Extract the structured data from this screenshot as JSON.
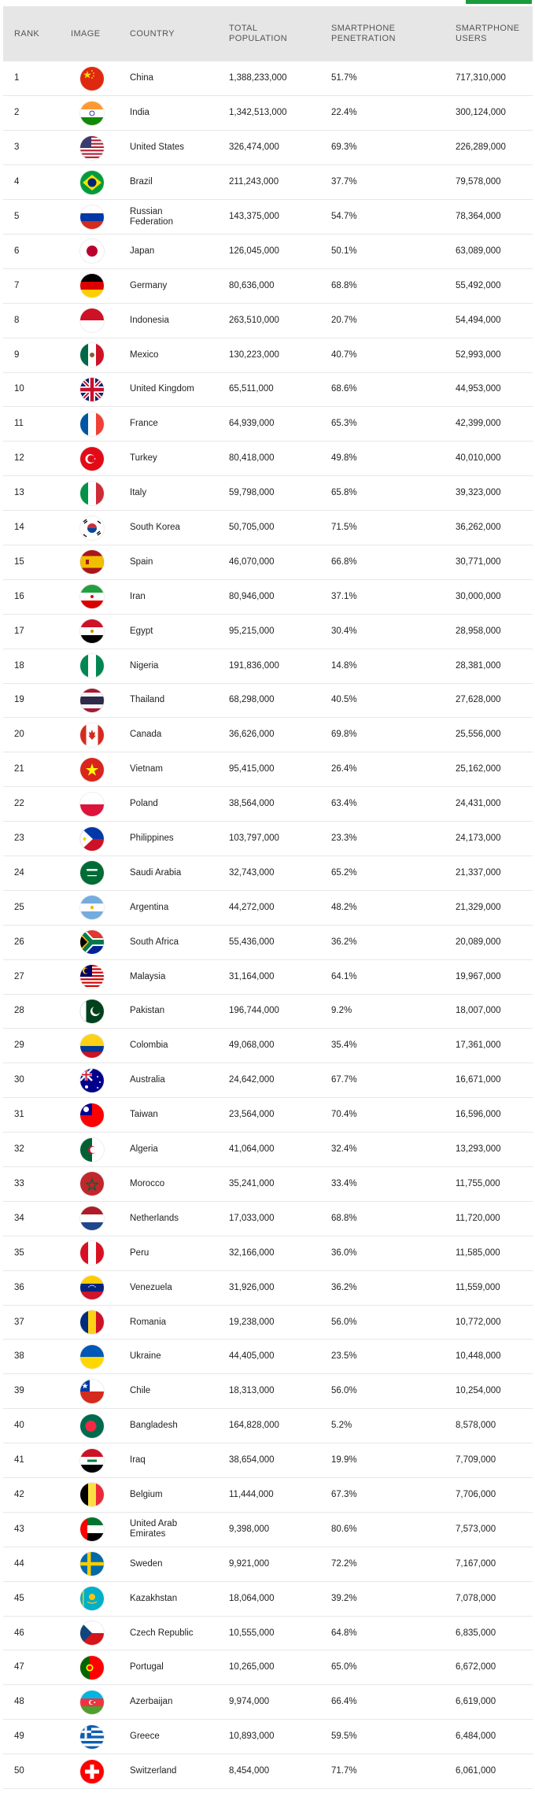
{
  "headers": {
    "rank": "RANK",
    "image": "IMAGE",
    "country": "COUNTRY",
    "population": "TOTAL POPULATION",
    "penetration": "SMARTPHONE PENETRATION",
    "users": "SMARTPHONE USERS"
  },
  "accent_color": "#1a9c3c",
  "rows": [
    {
      "rank": "1",
      "flag": "china-flag-icon",
      "country": "China",
      "population": "1,388,233,000",
      "penetration": "51.7%",
      "users": "717,310,000"
    },
    {
      "rank": "2",
      "flag": "india-flag-icon",
      "country": "India",
      "population": "1,342,513,000",
      "penetration": "22.4%",
      "users": "300,124,000"
    },
    {
      "rank": "3",
      "flag": "united-states-flag-icon",
      "country": "United States",
      "population": "326,474,000",
      "penetration": "69.3%",
      "users": "226,289,000"
    },
    {
      "rank": "4",
      "flag": "brazil-flag-icon",
      "country": "Brazil",
      "population": "211,243,000",
      "penetration": "37.7%",
      "users": "79,578,000"
    },
    {
      "rank": "5",
      "flag": "russian-federation-flag-icon",
      "country": "Russian Federation",
      "population": "143,375,000",
      "penetration": "54.7%",
      "users": "78,364,000"
    },
    {
      "rank": "6",
      "flag": "japan-flag-icon",
      "country": "Japan",
      "population": "126,045,000",
      "penetration": "50.1%",
      "users": "63,089,000"
    },
    {
      "rank": "7",
      "flag": "germany-flag-icon",
      "country": "Germany",
      "population": "80,636,000",
      "penetration": "68.8%",
      "users": "55,492,000"
    },
    {
      "rank": "8",
      "flag": "indonesia-flag-icon",
      "country": "Indonesia",
      "population": "263,510,000",
      "penetration": "20.7%",
      "users": "54,494,000"
    },
    {
      "rank": "9",
      "flag": "mexico-flag-icon",
      "country": "Mexico",
      "population": "130,223,000",
      "penetration": "40.7%",
      "users": "52,993,000"
    },
    {
      "rank": "10",
      "flag": "united-kingdom-flag-icon",
      "country": "United Kingdom",
      "population": "65,511,000",
      "penetration": "68.6%",
      "users": "44,953,000"
    },
    {
      "rank": "11",
      "flag": "france-flag-icon",
      "country": "France",
      "population": "64,939,000",
      "penetration": "65.3%",
      "users": "42,399,000"
    },
    {
      "rank": "12",
      "flag": "turkey-flag-icon",
      "country": "Turkey",
      "population": "80,418,000",
      "penetration": "49.8%",
      "users": "40,010,000"
    },
    {
      "rank": "13",
      "flag": "italy-flag-icon",
      "country": "Italy",
      "population": "59,798,000",
      "penetration": "65.8%",
      "users": "39,323,000"
    },
    {
      "rank": "14",
      "flag": "south-korea-flag-icon",
      "country": "South Korea",
      "population": "50,705,000",
      "penetration": "71.5%",
      "users": "36,262,000"
    },
    {
      "rank": "15",
      "flag": "spain-flag-icon",
      "country": "Spain",
      "population": "46,070,000",
      "penetration": "66.8%",
      "users": "30,771,000"
    },
    {
      "rank": "16",
      "flag": "iran-flag-icon",
      "country": "Iran",
      "population": "80,946,000",
      "penetration": "37.1%",
      "users": "30,000,000"
    },
    {
      "rank": "17",
      "flag": "egypt-flag-icon",
      "country": "Egypt",
      "population": "95,215,000",
      "penetration": "30.4%",
      "users": "28,958,000"
    },
    {
      "rank": "18",
      "flag": "nigeria-flag-icon",
      "country": "Nigeria",
      "population": "191,836,000",
      "penetration": "14.8%",
      "users": "28,381,000"
    },
    {
      "rank": "19",
      "flag": "thailand-flag-icon",
      "country": "Thailand",
      "population": "68,298,000",
      "penetration": "40.5%",
      "users": "27,628,000"
    },
    {
      "rank": "20",
      "flag": "canada-flag-icon",
      "country": "Canada",
      "population": "36,626,000",
      "penetration": "69.8%",
      "users": "25,556,000"
    },
    {
      "rank": "21",
      "flag": "vietnam-flag-icon",
      "country": "Vietnam",
      "population": "95,415,000",
      "penetration": "26.4%",
      "users": "25,162,000"
    },
    {
      "rank": "22",
      "flag": "poland-flag-icon",
      "country": "Poland",
      "population": "38,564,000",
      "penetration": "63.4%",
      "users": "24,431,000"
    },
    {
      "rank": "23",
      "flag": "philippines-flag-icon",
      "country": "Philippines",
      "population": "103,797,000",
      "penetration": "23.3%",
      "users": "24,173,000"
    },
    {
      "rank": "24",
      "flag": "saudi-arabia-flag-icon",
      "country": "Saudi Arabia",
      "population": "32,743,000",
      "penetration": "65.2%",
      "users": "21,337,000"
    },
    {
      "rank": "25",
      "flag": "argentina-flag-icon",
      "country": "Argentina",
      "population": "44,272,000",
      "penetration": "48.2%",
      "users": "21,329,000"
    },
    {
      "rank": "26",
      "flag": "south-africa-flag-icon",
      "country": "South Africa",
      "population": "55,436,000",
      "penetration": "36.2%",
      "users": "20,089,000"
    },
    {
      "rank": "27",
      "flag": "malaysia-flag-icon",
      "country": "Malaysia",
      "population": "31,164,000",
      "penetration": "64.1%",
      "users": "19,967,000"
    },
    {
      "rank": "28",
      "flag": "pakistan-flag-icon",
      "country": "Pakistan",
      "population": "196,744,000",
      "penetration": "9.2%",
      "users": "18,007,000"
    },
    {
      "rank": "29",
      "flag": "colombia-flag-icon",
      "country": "Colombia",
      "population": "49,068,000",
      "penetration": "35.4%",
      "users": "17,361,000"
    },
    {
      "rank": "30",
      "flag": "australia-flag-icon",
      "country": "Australia",
      "population": "24,642,000",
      "penetration": "67.7%",
      "users": "16,671,000"
    },
    {
      "rank": "31",
      "flag": "taiwan-flag-icon",
      "country": "Taiwan",
      "population": "23,564,000",
      "penetration": "70.4%",
      "users": "16,596,000"
    },
    {
      "rank": "32",
      "flag": "algeria-flag-icon",
      "country": "Algeria",
      "population": "41,064,000",
      "penetration": "32.4%",
      "users": "13,293,000"
    },
    {
      "rank": "33",
      "flag": "morocco-flag-icon",
      "country": "Morocco",
      "population": "35,241,000",
      "penetration": "33.4%",
      "users": "11,755,000"
    },
    {
      "rank": "34",
      "flag": "netherlands-flag-icon",
      "country": "Netherlands",
      "population": "17,033,000",
      "penetration": "68.8%",
      "users": "11,720,000"
    },
    {
      "rank": "35",
      "flag": "peru-flag-icon",
      "country": "Peru",
      "population": "32,166,000",
      "penetration": "36.0%",
      "users": "11,585,000"
    },
    {
      "rank": "36",
      "flag": "venezuela-flag-icon",
      "country": "Venezuela",
      "population": "31,926,000",
      "penetration": "36.2%",
      "users": "11,559,000"
    },
    {
      "rank": "37",
      "flag": "romania-flag-icon",
      "country": "Romania",
      "population": "19,238,000",
      "penetration": "56.0%",
      "users": "10,772,000"
    },
    {
      "rank": "38",
      "flag": "ukraine-flag-icon",
      "country": "Ukraine",
      "population": "44,405,000",
      "penetration": "23.5%",
      "users": "10,448,000"
    },
    {
      "rank": "39",
      "flag": "chile-flag-icon",
      "country": "Chile",
      "population": "18,313,000",
      "penetration": "56.0%",
      "users": "10,254,000"
    },
    {
      "rank": "40",
      "flag": "bangladesh-flag-icon",
      "country": "Bangladesh",
      "population": "164,828,000",
      "penetration": "5.2%",
      "users": "8,578,000"
    },
    {
      "rank": "41",
      "flag": "iraq-flag-icon",
      "country": "Iraq",
      "population": "38,654,000",
      "penetration": "19.9%",
      "users": "7,709,000"
    },
    {
      "rank": "42",
      "flag": "belgium-flag-icon",
      "country": "Belgium",
      "population": "11,444,000",
      "penetration": "67.3%",
      "users": "7,706,000"
    },
    {
      "rank": "43",
      "flag": "united-arab-emirates-flag-icon",
      "country": "United Arab Emirates",
      "population": "9,398,000",
      "penetration": "80.6%",
      "users": "7,573,000"
    },
    {
      "rank": "44",
      "flag": "sweden-flag-icon",
      "country": "Sweden",
      "population": "9,921,000",
      "penetration": "72.2%",
      "users": "7,167,000"
    },
    {
      "rank": "45",
      "flag": "kazakhstan-flag-icon",
      "country": "Kazakhstan",
      "population": "18,064,000",
      "penetration": "39.2%",
      "users": "7,078,000"
    },
    {
      "rank": "46",
      "flag": "czech-republic-flag-icon",
      "country": "Czech Republic",
      "population": "10,555,000",
      "penetration": "64.8%",
      "users": "6,835,000"
    },
    {
      "rank": "47",
      "flag": "portugal-flag-icon",
      "country": "Portugal",
      "population": "10,265,000",
      "penetration": "65.0%",
      "users": "6,672,000"
    },
    {
      "rank": "48",
      "flag": "azerbaijan-flag-icon",
      "country": "Azerbaijan",
      "population": "9,974,000",
      "penetration": "66.4%",
      "users": "6,619,000"
    },
    {
      "rank": "49",
      "flag": "greece-flag-icon",
      "country": "Greece",
      "population": "10,893,000",
      "penetration": "59.5%",
      "users": "6,484,000"
    },
    {
      "rank": "50",
      "flag": "switzerland-flag-icon",
      "country": "Switzerland",
      "population": "8,454,000",
      "penetration": "71.7%",
      "users": "6,061,000"
    }
  ]
}
